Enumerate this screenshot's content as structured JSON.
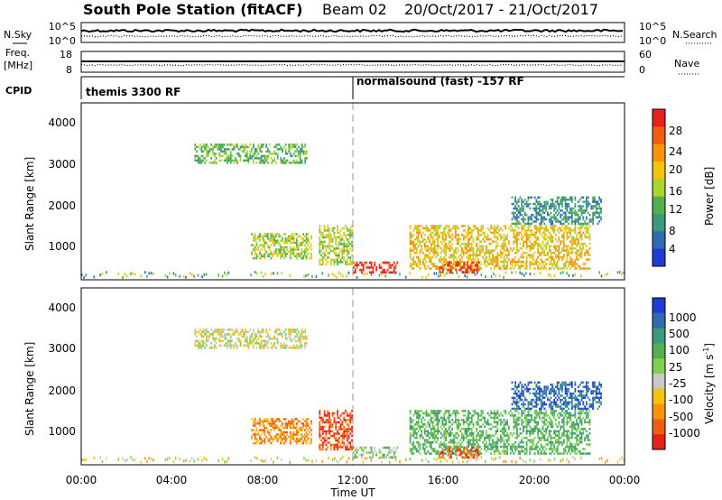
{
  "header": {
    "station": "South Pole Station (fitACF)",
    "beam": "Beam 02",
    "dates": "20/Oct/2017 - 21/Oct/2017"
  },
  "noise_panel": {
    "left_label": "N.Sky",
    "left_ticks": [
      "10^5",
      "10^0"
    ],
    "right_label": "N.Search",
    "right_ticks": [
      "10^5",
      "10^0"
    ]
  },
  "freq_panel": {
    "left_label_1": "Freq.",
    "left_label_2": "[MHz]",
    "left_ticks": [
      "18",
      "8"
    ],
    "right_label": "Nave",
    "right_ticks": [
      "60",
      "0"
    ]
  },
  "cpid_panel": {
    "label": "CPID",
    "modes": [
      "themis 3300 RF",
      "normalsound (fast) -157 RF"
    ]
  },
  "power_panel": {
    "ylabel": "Slant Range [km]",
    "colorbar_label": "Power [dB]",
    "colorbar_ticks": [
      "28",
      "24",
      "20",
      "16",
      "12",
      "8",
      "4"
    ],
    "colorbar_colors": [
      "#e8201a",
      "#f25c0e",
      "#f7930a",
      "#f5c20c",
      "#a9d531",
      "#52b04e",
      "#3a9a7a",
      "#2e6bb0",
      "#1f3bd6"
    ]
  },
  "velocity_panel": {
    "ylabel": "Slant Range [km]",
    "colorbar_label": "Velocity [m s",
    "colorbar_label_sup": "-1",
    "colorbar_label_end": "]",
    "colorbar_ticks": [
      "1000",
      "500",
      "100",
      "25",
      "-25",
      "-100",
      "-500",
      "-1000"
    ],
    "colorbar_colors": [
      "#1f3bd6",
      "#2e6bb0",
      "#3a9a7a",
      "#52b04e",
      "#7dd14c",
      "#c8c8c8",
      "#f5c20c",
      "#f7930a",
      "#f25c0e",
      "#e8201a"
    ]
  },
  "xaxis": {
    "label": "Time UT",
    "ticks": [
      "00:00",
      "04:00",
      "08:00",
      "12:00",
      "16:00",
      "20:00",
      "00:00"
    ]
  },
  "chart_data": {
    "type": "heatmap",
    "title": "South Pole Station (fitACF) Beam 02 20/Oct/2017 - 21/Oct/2017",
    "xlabel": "Time UT",
    "ylabel": "Slant Range [km]",
    "xlim_hours": [
      0,
      24
    ],
    "ylim_km": [
      150,
      4500
    ],
    "y_ticks": [
      1000,
      2000,
      3000,
      4000
    ],
    "mode_change_hour": 12,
    "power_scale_db": [
      4,
      8,
      12,
      16,
      20,
      24,
      28
    ],
    "velocity_scale_ms": [
      -1000,
      -500,
      -100,
      -25,
      25,
      100,
      500,
      1000
    ],
    "echo_regions": [
      {
        "t0": 5.0,
        "t1": 10.0,
        "r0": 3000,
        "r1": 3500,
        "power": "weak-moderate",
        "velocity": "near zero"
      },
      {
        "t0": 7.5,
        "t1": 10.2,
        "r0": 650,
        "r1": 1300,
        "power": "moderate",
        "velocity": "negative / mixed"
      },
      {
        "t0": 10.5,
        "t1": 12.0,
        "r0": 500,
        "r1": 1500,
        "power": "moderate",
        "velocity": "-1000 to -500"
      },
      {
        "t0": 12.0,
        "t1": 14.0,
        "r0": 300,
        "r1": 600,
        "power": "strong (~28 dB)",
        "velocity": "near zero to positive"
      },
      {
        "t0": 14.5,
        "t1": 22.5,
        "r0": 400,
        "r1": 1500,
        "power": "moderate-strong",
        "velocity": "mixed, positive at high range"
      },
      {
        "t0": 15.8,
        "t1": 17.6,
        "r0": 300,
        "r1": 600,
        "power": "strong (~28 dB)",
        "velocity": "negative"
      },
      {
        "t0": 19.0,
        "t1": 23.0,
        "r0": 1500,
        "r1": 2200,
        "power": "weak",
        "velocity": "positive"
      }
    ]
  }
}
